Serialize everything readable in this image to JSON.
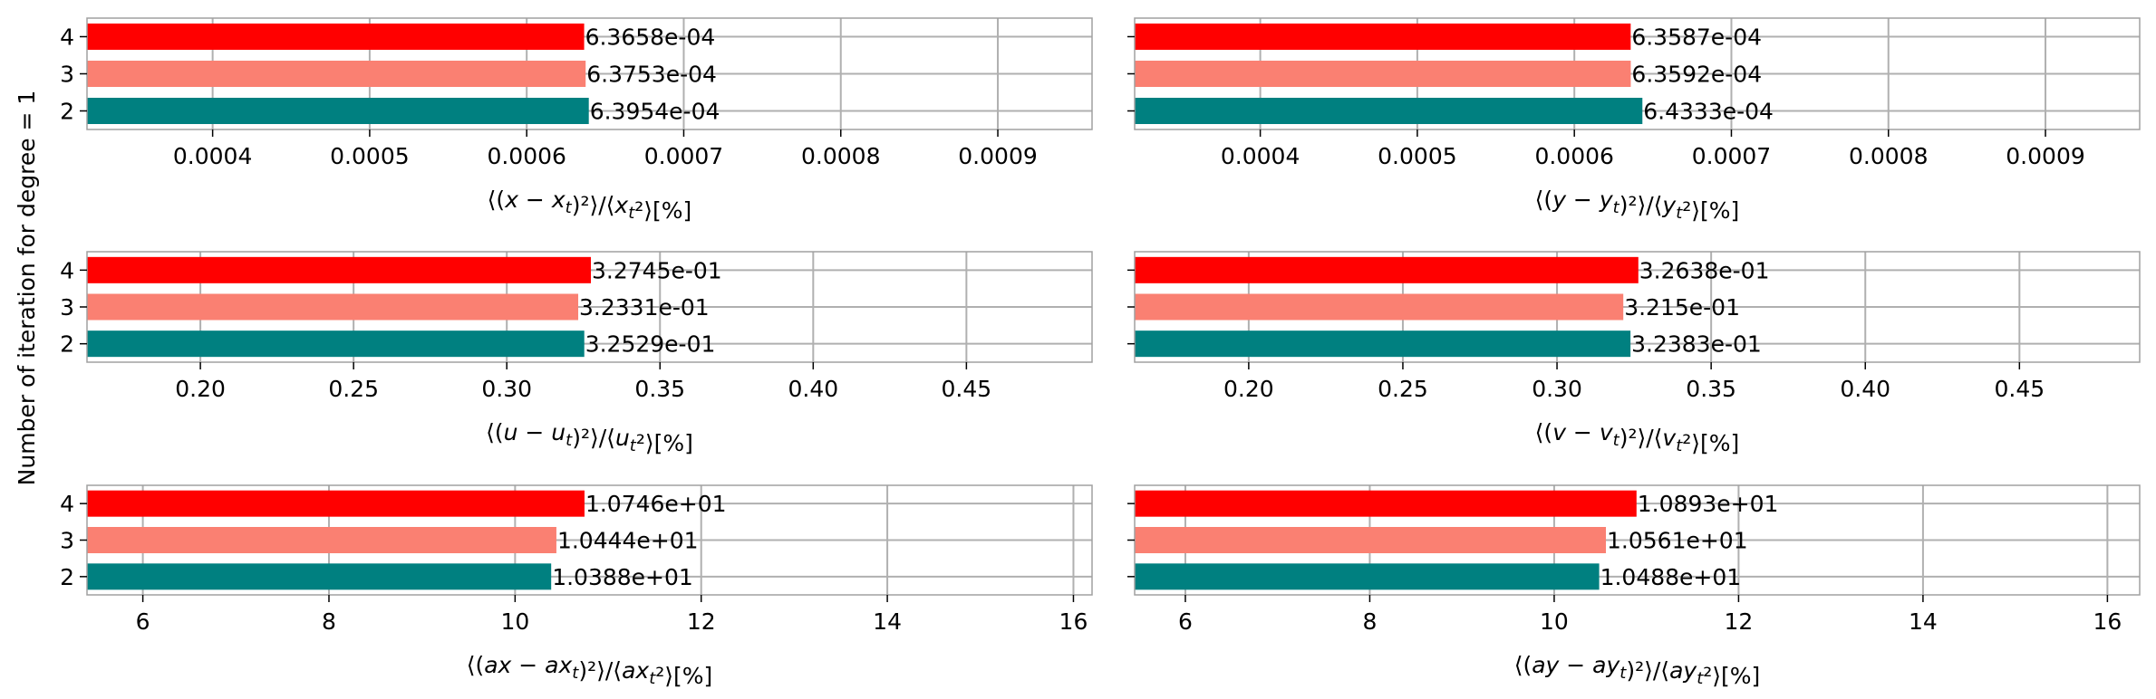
{
  "figure": {
    "ylabel": "Number of iteration for degree = 1",
    "unit_suffix": "[%]"
  },
  "chart_data": [
    {
      "type": "bar",
      "orientation": "horizontal",
      "categories": [
        "2",
        "3",
        "4"
      ],
      "values": [
        0.00063954,
        0.00063753,
        0.00063658
      ],
      "value_labels": [
        "6.3954e-04",
        "6.3753e-04",
        "6.3658e-04"
      ],
      "colors": [
        "#008080",
        "#fa8072",
        "#ff0000"
      ],
      "xlim": [
        0.00032,
        0.00096
      ],
      "xticks": [
        0.0004,
        0.0005,
        0.0006,
        0.0007,
        0.0008,
        0.0009
      ],
      "xtick_labels": [
        "0.0004",
        "0.0005",
        "0.0006",
        "0.0007",
        "0.0008",
        "0.0009"
      ],
      "xlabel": "⟨(x − x_t)²⟩/⟨x_t²⟩[%]",
      "show_yticklabels": true,
      "grid": "x"
    },
    {
      "type": "bar",
      "orientation": "horizontal",
      "categories": [
        "2",
        "3",
        "4"
      ],
      "values": [
        0.00064333,
        0.00063592,
        0.00063587
      ],
      "value_labels": [
        "6.4333e-04",
        "6.3592e-04",
        "6.3587e-04"
      ],
      "colors": [
        "#008080",
        "#fa8072",
        "#ff0000"
      ],
      "xlim": [
        0.00032,
        0.00096
      ],
      "xticks": [
        0.0004,
        0.0005,
        0.0006,
        0.0007,
        0.0008,
        0.0009
      ],
      "xtick_labels": [
        "0.0004",
        "0.0005",
        "0.0006",
        "0.0007",
        "0.0008",
        "0.0009"
      ],
      "xlabel": "⟨(y − y_t)²⟩/⟨y_t²⟩[%]",
      "show_yticklabels": false,
      "grid": "x"
    },
    {
      "type": "bar",
      "orientation": "horizontal",
      "categories": [
        "2",
        "3",
        "4"
      ],
      "values": [
        0.32529,
        0.32331,
        0.32745
      ],
      "value_labels": [
        "3.2529e-01",
        "3.2331e-01",
        "3.2745e-01"
      ],
      "colors": [
        "#008080",
        "#fa8072",
        "#ff0000"
      ],
      "xlim": [
        0.163,
        0.491
      ],
      "xticks": [
        0.2,
        0.25,
        0.3,
        0.35,
        0.4,
        0.45
      ],
      "xtick_labels": [
        "0.20",
        "0.25",
        "0.30",
        "0.35",
        "0.40",
        "0.45"
      ],
      "xlabel": "⟨(u − u_t)²⟩/⟨u_t²⟩[%]",
      "show_yticklabels": true,
      "grid": "x"
    },
    {
      "type": "bar",
      "orientation": "horizontal",
      "categories": [
        "2",
        "3",
        "4"
      ],
      "values": [
        0.32383,
        0.3215,
        0.32638
      ],
      "value_labels": [
        "3.2383e-01",
        "3.215e-01",
        "3.2638e-01"
      ],
      "colors": [
        "#008080",
        "#fa8072",
        "#ff0000"
      ],
      "xlim": [
        0.163,
        0.489
      ],
      "xticks": [
        0.2,
        0.25,
        0.3,
        0.35,
        0.4,
        0.45
      ],
      "xtick_labels": [
        "0.20",
        "0.25",
        "0.30",
        "0.35",
        "0.40",
        "0.45"
      ],
      "xlabel": "⟨(v − v_t)²⟩/⟨v_t²⟩[%]",
      "show_yticklabels": false,
      "grid": "x"
    },
    {
      "type": "bar",
      "orientation": "horizontal",
      "categories": [
        "2",
        "3",
        "4"
      ],
      "values": [
        10.388,
        10.444,
        10.746
      ],
      "value_labels": [
        "1.0388e+01",
        "1.0444e+01",
        "1.0746e+01"
      ],
      "colors": [
        "#008080",
        "#fa8072",
        "#ff0000"
      ],
      "xlim": [
        5.4,
        16.2
      ],
      "xticks": [
        6,
        8,
        10,
        12,
        14,
        16
      ],
      "xtick_labels": [
        "6",
        "8",
        "10",
        "12",
        "14",
        "16"
      ],
      "xlabel": "⟨(ax − ax_t)²⟩/⟨ax_t²⟩[%]",
      "show_yticklabels": true,
      "grid": "x"
    },
    {
      "type": "bar",
      "orientation": "horizontal",
      "categories": [
        "2",
        "3",
        "4"
      ],
      "values": [
        10.488,
        10.561,
        10.893
      ],
      "value_labels": [
        "1.0488e+01",
        "1.0561e+01",
        "1.0893e+01"
      ],
      "colors": [
        "#008080",
        "#fa8072",
        "#ff0000"
      ],
      "xlim": [
        5.45,
        16.35
      ],
      "xticks": [
        6,
        8,
        10,
        12,
        14,
        16
      ],
      "xtick_labels": [
        "6",
        "8",
        "10",
        "12",
        "14",
        "16"
      ],
      "xlabel": "⟨(ay − ay_t)²⟩/⟨ay_t²⟩[%]",
      "show_yticklabels": false,
      "grid": "x"
    }
  ]
}
